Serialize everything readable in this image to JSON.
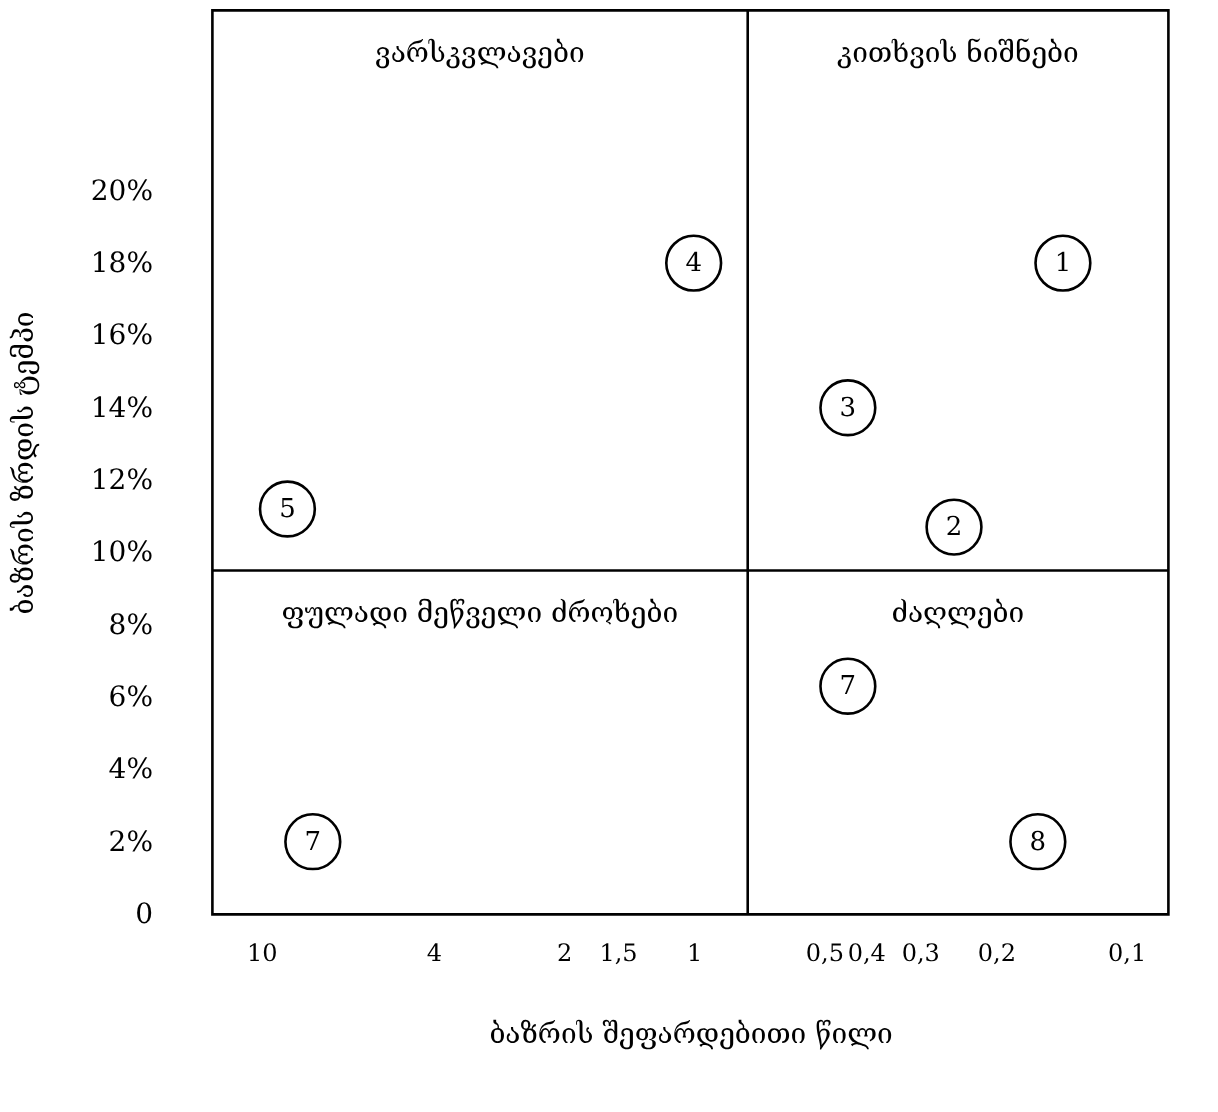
{
  "chart_data": {
    "type": "scatter",
    "xlabel": "ბაზრის შეფარდებითი წილი",
    "ylabel": "ბაზრის ზრდის ტემპი",
    "x": [
      0.14,
      0.25,
      0.44,
      1,
      8.7,
      0.44,
      7.6,
      0.16
    ],
    "values": [
      18,
      10.7,
      14,
      18,
      11.2,
      6.3,
      2,
      2
    ],
    "marker": "circle",
    "log": "x",
    "xlim": [
      13,
      0.08
    ],
    "xticks": [
      10,
      4,
      2,
      {
        "value": 1.5,
        "label": "1,5"
      },
      1,
      {
        "value": 0.5,
        "label": "0,5"
      },
      {
        "value": 0.4,
        "label": "0,4"
      },
      {
        "value": 0.3,
        "label": "0,3"
      },
      {
        "value": 0.2,
        "label": "0,2"
      },
      {
        "value": 0.1,
        "label": "0,1"
      }
    ],
    "ylim": [
      0,
      25
    ],
    "yticks": [
      0,
      {
        "value": 2,
        "label": "2%"
      },
      {
        "value": 4,
        "label": "4%"
      },
      {
        "value": 6,
        "label": "6%"
      },
      {
        "value": 8,
        "label": "8%"
      },
      {
        "value": 10,
        "label": "10%"
      },
      {
        "value": 12,
        "label": "12%"
      },
      {
        "value": 14,
        "label": "14%"
      },
      {
        "value": 16,
        "label": "16%"
      },
      {
        "value": 18,
        "label": "18%"
      },
      {
        "value": 20,
        "label": "20%"
      }
    ],
    "ref_lines": [
      {
        "axis": "x",
        "value": 0.75,
        "color": "#000000"
      },
      {
        "axis": "y",
        "value": 9.5,
        "color": "#000000"
      }
    ],
    "annotations": [
      "ვარსკვლავები",
      "კითხვის ნიშნები",
      "ფულადი მეწველი ძროხები",
      "ძაღლები",
      {
        "text": "1",
        "x": 0.14,
        "y": 18
      },
      {
        "text": "2",
        "x": 0.25,
        "y": 10.7
      },
      {
        "text": "3",
        "x": 0.44,
        "y": 14
      },
      {
        "text": "4",
        "x": 1,
        "y": 18
      },
      {
        "text": "5",
        "x": 8.7,
        "y": 11.2
      },
      {
        "text": "7",
        "x": 0.44,
        "y": 6.3
      },
      {
        "text": "7",
        "x": 7.6,
        "y": 2
      },
      {
        "text": "8",
        "x": 0.16,
        "y": 2
      }
    ]
  }
}
